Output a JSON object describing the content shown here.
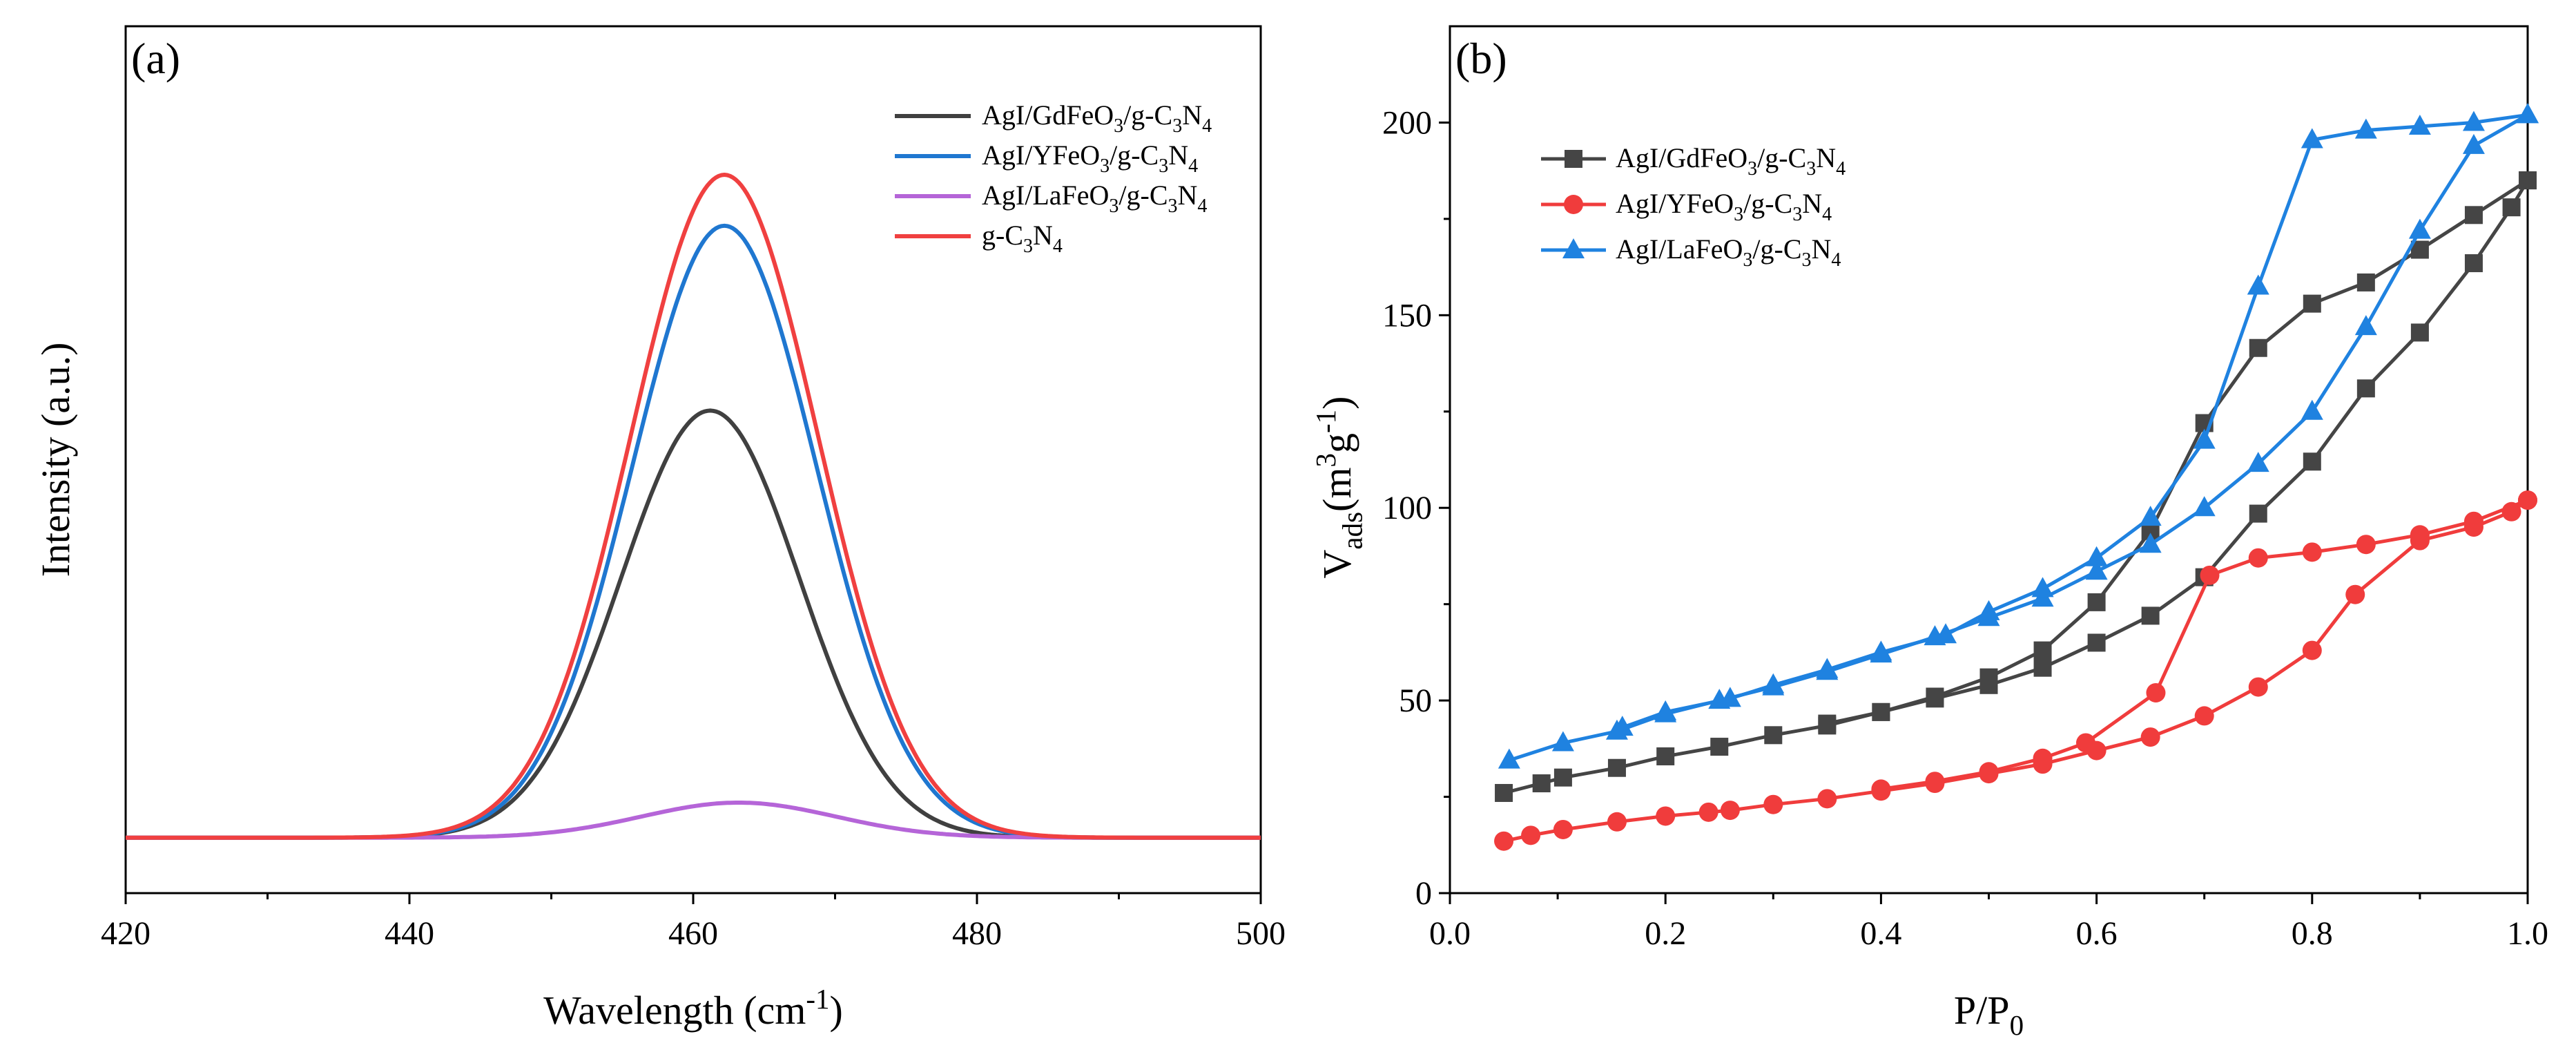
{
  "chart_data": [
    {
      "panel": "(a)",
      "type": "line",
      "title": "",
      "xlabel": "Wavelength (cm",
      "xlabel_sup": "-1",
      "xlabel_end": ")",
      "ylabel": "Intensity (a.u.)",
      "xlim": [
        420,
        500
      ],
      "ylim": [
        -8,
        128
      ],
      "x_ticks": [
        420,
        440,
        460,
        480,
        500
      ],
      "y_ticks_shown": false,
      "legend_position": "top-right",
      "series": [
        {
          "name": "AgI/GdFeO3/g-C3N4",
          "legend": [
            {
              "t": "AgI/GdFeO",
              "sub": false
            },
            {
              "t": "3",
              "sub": true
            },
            {
              "t": "/g-C",
              "sub": false
            },
            {
              "t": "3",
              "sub": true
            },
            {
              "t": "N",
              "sub": false
            },
            {
              "t": "4",
              "sub": true
            }
          ],
          "color": "#404040",
          "peak": 67,
          "center": 461.2,
          "sigma": 6.3,
          "baseline": 0.7
        },
        {
          "name": "AgI/YFeO3/g-C3N4",
          "legend": [
            {
              "t": "AgI/YFeO",
              "sub": false
            },
            {
              "t": "3",
              "sub": true
            },
            {
              "t": "/g-C",
              "sub": false
            },
            {
              "t": "3",
              "sub": true
            },
            {
              "t": "N",
              "sub": false
            },
            {
              "t": "4",
              "sub": true
            }
          ],
          "color": "#1f77d0",
          "peak": 96,
          "center": 462.2,
          "sigma": 6.5,
          "baseline": 0.7
        },
        {
          "name": "AgI/LaFeO3/g-C3N4",
          "legend": [
            {
              "t": "AgI/LaFeO",
              "sub": false
            },
            {
              "t": "3",
              "sub": true
            },
            {
              "t": "/g-C",
              "sub": false
            },
            {
              "t": "3",
              "sub": true
            },
            {
              "t": "N",
              "sub": false
            },
            {
              "t": "4",
              "sub": true
            }
          ],
          "color": "#b565d8",
          "peak": 5.5,
          "center": 463.2,
          "sigma": 6.8,
          "baseline": 0.7
        },
        {
          "name": "g-C3N4",
          "legend": [
            {
              "t": "g-C",
              "sub": false
            },
            {
              "t": "3",
              "sub": true
            },
            {
              "t": "N",
              "sub": false
            },
            {
              "t": "4",
              "sub": true
            }
          ],
          "color": "#f04040",
          "peak": 104,
          "center": 462.2,
          "sigma": 6.6,
          "baseline": 0.7
        }
      ]
    },
    {
      "panel": "(b)",
      "type": "line",
      "title": "",
      "xlabel": "P/P",
      "xlabel_sub": "0",
      "ylabel": "V",
      "ylabel_sub": "ads",
      "ylabel_mid": "(m",
      "ylabel_sup1": "3",
      "ylabel_g": "g",
      "ylabel_sup2": "-1",
      "ylabel_end": ")",
      "xlim": [
        0.0,
        1.0
      ],
      "ylim": [
        0,
        225
      ],
      "x_ticks": [
        0.0,
        0.2,
        0.4,
        0.6,
        0.8,
        1.0
      ],
      "x_tick_labels": [
        "0.0",
        "0.2",
        "0.4",
        "0.6",
        "0.8",
        "1.0"
      ],
      "y_ticks": [
        0,
        50,
        100,
        150,
        200
      ],
      "y_tick_labels": [
        "0",
        "50",
        "100",
        "150",
        "200"
      ],
      "legend_position": "top-left",
      "series": [
        {
          "name": "AgI/GdFeO3/g-C3N4",
          "legend": [
            {
              "t": "AgI/GdFeO",
              "sub": false
            },
            {
              "t": "3",
              "sub": true
            },
            {
              "t": "/g-C",
              "sub": false
            },
            {
              "t": "3",
              "sub": true
            },
            {
              "t": "N",
              "sub": false
            },
            {
              "t": "4",
              "sub": true
            }
          ],
          "color": "#454545",
          "marker": "square",
          "adsorption": [
            [
              0.05,
              26
            ],
            [
              0.085,
              28.5
            ],
            [
              0.105,
              30
            ],
            [
              0.155,
              32.5
            ],
            [
              0.2,
              35.5
            ],
            [
              0.25,
              38
            ],
            [
              0.3,
              41
            ],
            [
              0.35,
              43.5
            ],
            [
              0.4,
              47
            ],
            [
              0.45,
              50.5
            ],
            [
              0.5,
              54
            ],
            [
              0.55,
              58.5
            ],
            [
              0.6,
              65
            ],
            [
              0.65,
              72
            ],
            [
              0.7,
              82
            ],
            [
              0.75,
              98.5
            ],
            [
              0.8,
              112
            ],
            [
              0.85,
              131
            ],
            [
              0.9,
              145.5
            ],
            [
              0.95,
              163.5
            ],
            [
              0.985,
              178
            ],
            [
              1.0,
              185
            ]
          ],
          "desorption": [
            [
              1.0,
              185
            ],
            [
              0.95,
              176
            ],
            [
              0.9,
              167
            ],
            [
              0.85,
              158.5
            ],
            [
              0.8,
              153
            ],
            [
              0.75,
              141.5
            ],
            [
              0.7,
              122
            ],
            [
              0.65,
              94
            ],
            [
              0.6,
              75.5
            ],
            [
              0.55,
              63
            ],
            [
              0.5,
              56
            ],
            [
              0.45,
              51
            ],
            [
              0.4,
              47
            ],
            [
              0.35,
              44
            ]
          ]
        },
        {
          "name": "AgI/YFeO3/g-C3N4",
          "legend": [
            {
              "t": "AgI/YFeO",
              "sub": false
            },
            {
              "t": "3",
              "sub": true
            },
            {
              "t": "/g-C",
              "sub": false
            },
            {
              "t": "3",
              "sub": true
            },
            {
              "t": "N",
              "sub": false
            },
            {
              "t": "4",
              "sub": true
            }
          ],
          "color": "#f03c3c",
          "marker": "circle",
          "adsorption": [
            [
              0.05,
              13.5
            ],
            [
              0.075,
              15
            ],
            [
              0.105,
              16.5
            ],
            [
              0.155,
              18.5
            ],
            [
              0.2,
              20
            ],
            [
              0.24,
              21
            ],
            [
              0.26,
              21.5
            ],
            [
              0.3,
              23
            ],
            [
              0.35,
              24.5
            ],
            [
              0.4,
              26.5
            ],
            [
              0.45,
              28.5
            ],
            [
              0.5,
              31
            ],
            [
              0.55,
              33.5
            ],
            [
              0.6,
              37
            ],
            [
              0.65,
              40.5
            ],
            [
              0.7,
              46
            ],
            [
              0.75,
              53.5
            ],
            [
              0.8,
              63
            ],
            [
              0.84,
              77.5
            ],
            [
              0.9,
              91.5
            ],
            [
              0.95,
              95
            ],
            [
              0.985,
              99
            ],
            [
              1.0,
              102
            ]
          ],
          "desorption": [
            [
              1.0,
              102
            ],
            [
              0.95,
              96.5
            ],
            [
              0.9,
              93
            ],
            [
              0.85,
              90.5
            ],
            [
              0.8,
              88.5
            ],
            [
              0.75,
              87
            ],
            [
              0.705,
              82.5
            ],
            [
              0.655,
              52
            ],
            [
              0.59,
              39
            ],
            [
              0.55,
              35
            ],
            [
              0.5,
              31.5
            ],
            [
              0.45,
              29
            ],
            [
              0.4,
              27
            ]
          ]
        },
        {
          "name": "AgI/LaFeO3/g-C3N4",
          "legend": [
            {
              "t": "AgI/LaFeO",
              "sub": false
            },
            {
              "t": "3",
              "sub": true
            },
            {
              "t": "/g-C",
              "sub": false
            },
            {
              "t": "3",
              "sub": true
            },
            {
              "t": "N",
              "sub": false
            },
            {
              "t": "4",
              "sub": true
            }
          ],
          "color": "#1f82e0",
          "marker": "triangle",
          "adsorption": [
            [
              0.055,
              34.5
            ],
            [
              0.105,
              39
            ],
            [
              0.155,
              42
            ],
            [
              0.2,
              46.5
            ],
            [
              0.25,
              50
            ],
            [
              0.3,
              53.5
            ],
            [
              0.35,
              57.5
            ],
            [
              0.4,
              62
            ],
            [
              0.45,
              66.5
            ],
            [
              0.5,
              71.5
            ],
            [
              0.55,
              76.5
            ],
            [
              0.6,
              83.5
            ],
            [
              0.65,
              90.5
            ],
            [
              0.7,
              100
            ],
            [
              0.75,
              111.5
            ],
            [
              0.8,
              125
            ],
            [
              0.85,
              147
            ],
            [
              0.9,
              172
            ],
            [
              0.95,
              194
            ],
            [
              1.0,
              202
            ]
          ],
          "desorption": [
            [
              1.0,
              202
            ],
            [
              0.95,
              200
            ],
            [
              0.9,
              199
            ],
            [
              0.85,
              198
            ],
            [
              0.8,
              195.5
            ],
            [
              0.75,
              157.5
            ],
            [
              0.7,
              117.5
            ],
            [
              0.65,
              97.5
            ],
            [
              0.6,
              87
            ],
            [
              0.55,
              79
            ],
            [
              0.5,
              73
            ],
            [
              0.46,
              67
            ],
            [
              0.4,
              62.5
            ],
            [
              0.35,
              58
            ],
            [
              0.3,
              54
            ],
            [
              0.26,
              50.5
            ],
            [
              0.2,
              47
            ],
            [
              0.16,
              43
            ]
          ]
        }
      ]
    }
  ]
}
